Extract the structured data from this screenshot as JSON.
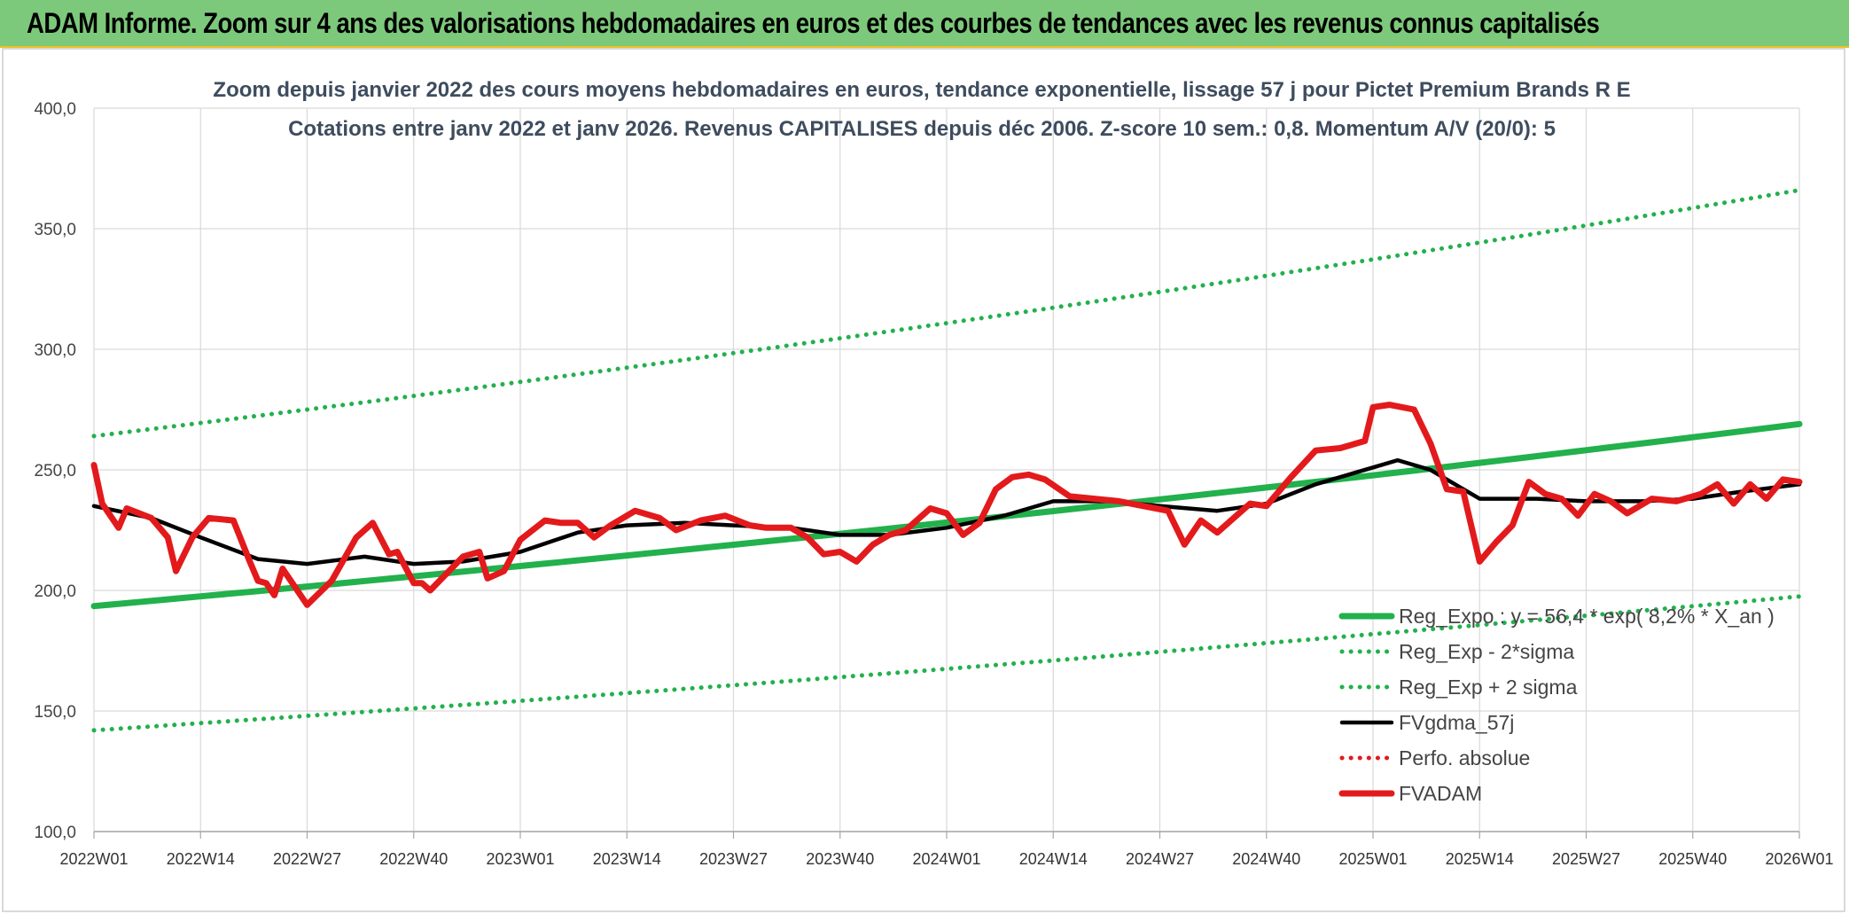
{
  "banner": {
    "title": "ADAM Informe. Zoom sur 4 ans des valorisations hebdomadaires en euros et des courbes de tendances avec les revenus connus capitalisés"
  },
  "chart_data": {
    "type": "line",
    "title_line1": "Zoom depuis janvier 2022 des cours moyens hebdomadaires en euros, tendance exponentielle, lissage 57 j pour Pictet Premium Brands R E",
    "title_line2": "Cotations entre janv 2022 et janv 2026. Revenus CAPITALISES depuis déc 2006. Z-score 10 sem.: 0,8. Momentum A/V (20/0): 5",
    "ylim": [
      100,
      400
    ],
    "y_ticks": [
      "100,0",
      "150,0",
      "200,0",
      "250,0",
      "300,0",
      "350,0",
      "400,0"
    ],
    "x_tick_labels": [
      "2022W01",
      "2022W14",
      "2022W27",
      "2022W40",
      "2023W01",
      "2023W14",
      "2023W27",
      "2023W40",
      "2024W01",
      "2024W14",
      "2024W27",
      "2024W40",
      "2025W01",
      "2025W14",
      "2025W27",
      "2025W40",
      "2026W01"
    ],
    "grid": true,
    "legend_position": "bottom-right",
    "series": [
      {
        "name": "Reg_Expo : y = 56,4 * exp( 8,2% * X_an )",
        "color": "#22b14c",
        "style": "solid",
        "x": [
          "2022W01",
          "2026W01"
        ],
        "values": [
          193.5,
          269.0
        ]
      },
      {
        "name": "Reg_Exp - 2*sigma",
        "color": "#22b14c",
        "style": "dotted",
        "x": [
          "2022W01",
          "2026W01"
        ],
        "values": [
          142.0,
          197.5
        ]
      },
      {
        "name": "Reg_Exp + 2 sigma",
        "color": "#22b14c",
        "style": "dotted",
        "x": [
          "2022W01",
          "2026W01"
        ],
        "values": [
          264.0,
          366.0
        ]
      },
      {
        "name": "FVgdma_57j",
        "color": "#000000",
        "style": "solid",
        "x": [
          "2022W01",
          "2022W08",
          "2022W14",
          "2022W21",
          "2022W27",
          "2022W34",
          "2022W40",
          "2022W46",
          "2023W01",
          "2023W08",
          "2023W14",
          "2023W21",
          "2023W27",
          "2023W34",
          "2023W40",
          "2023W46",
          "2024W01",
          "2024W08",
          "2024W14",
          "2024W21",
          "2024W27",
          "2024W34",
          "2024W40",
          "2024W46",
          "2025W01",
          "2025W04",
          "2025W08",
          "2025W14",
          "2025W21",
          "2025W27",
          "2025W34",
          "2025W40",
          "2025W46",
          "2026W01"
        ],
        "values": [
          235,
          230,
          222,
          213,
          211,
          214,
          211,
          212,
          216,
          224,
          227,
          228,
          227,
          226,
          223,
          223,
          226,
          231,
          237,
          237,
          235,
          233,
          236,
          244,
          251,
          254,
          250,
          238,
          238,
          237,
          237,
          238,
          241,
          244
        ]
      },
      {
        "name": "Perfo. absolue",
        "color": "#e31a1c",
        "style": "dotted",
        "x": [],
        "values": []
      },
      {
        "name": "FVADAM",
        "color": "#e31a1c",
        "style": "solid",
        "x": [
          "2022W01",
          "2022W02",
          "2022W04",
          "2022W05",
          "2022W08",
          "2022W10",
          "2022W11",
          "2022W13",
          "2022W15",
          "2022W18",
          "2022W20",
          "2022W21",
          "2022W22",
          "2022W23",
          "2022W24",
          "2022W27",
          "2022W30",
          "2022W33",
          "2022W35",
          "2022W37",
          "2022W38",
          "2022W40",
          "2022W41",
          "2022W42",
          "2022W44",
          "2022W46",
          "2022W48",
          "2022W49",
          "2022W51",
          "2023W01",
          "2023W04",
          "2023W06",
          "2023W08",
          "2023W10",
          "2023W12",
          "2023W15",
          "2023W18",
          "2023W20",
          "2023W23",
          "2023W26",
          "2023W29",
          "2023W31",
          "2023W34",
          "2023W36",
          "2023W38",
          "2023W40",
          "2023W42",
          "2023W44",
          "2023W46",
          "2023W48",
          "2023W51",
          "2024W01",
          "2024W03",
          "2024W05",
          "2024W07",
          "2024W09",
          "2024W11",
          "2024W13",
          "2024W16",
          "2024W19",
          "2024W22",
          "2024W25",
          "2024W28",
          "2024W30",
          "2024W32",
          "2024W34",
          "2024W36",
          "2024W38",
          "2024W40",
          "2024W43",
          "2024W46",
          "2024W49",
          "2024W52",
          "2025W01",
          "2025W03",
          "2025W06",
          "2025W08",
          "2025W10",
          "2025W12",
          "2025W14",
          "2025W16",
          "2025W18",
          "2025W20",
          "2025W22",
          "2025W24",
          "2025W26",
          "2025W28",
          "2025W30",
          "2025W32",
          "2025W35",
          "2025W38",
          "2025W41",
          "2025W43",
          "2025W45",
          "2025W47",
          "2025W49",
          "2025W51",
          "2026W01"
        ],
        "values": [
          252,
          236,
          226,
          234,
          230,
          222,
          208,
          222,
          230,
          229,
          212,
          204,
          203,
          198,
          209,
          194,
          204,
          222,
          228,
          215,
          216,
          203,
          203,
          200,
          207,
          214,
          216,
          205,
          208,
          221,
          229,
          228,
          228,
          222,
          227,
          233,
          230,
          225,
          229,
          231,
          227,
          226,
          226,
          222,
          215,
          216,
          212,
          219,
          223,
          225,
          234,
          232,
          223,
          228,
          242,
          247,
          248,
          246,
          239,
          238,
          237,
          235,
          233,
          219,
          229,
          224,
          230,
          236,
          235,
          247,
          258,
          259,
          262,
          276,
          277,
          275,
          261,
          242,
          241,
          212,
          220,
          227,
          245,
          240,
          238,
          231,
          240,
          237,
          232,
          238,
          237,
          240,
          244,
          236,
          244,
          238,
          246,
          245
        ]
      }
    ]
  }
}
